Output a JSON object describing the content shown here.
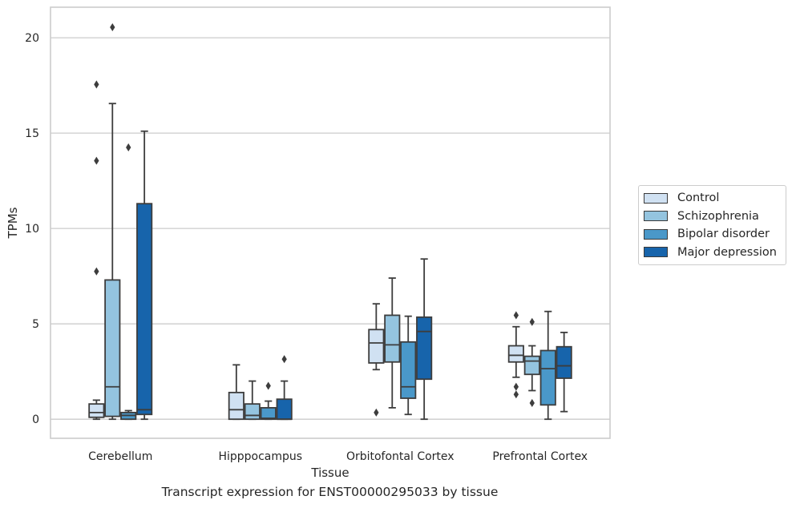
{
  "chart_data": {
    "type": "box",
    "title": "",
    "caption": "Transcript expression for ENST00000295033 by tissue",
    "xlabel": "Tissue",
    "ylabel": "TPMs",
    "ylim": [
      -1,
      21.6
    ],
    "yticks": [
      0,
      5,
      10,
      15,
      20
    ],
    "grid": "horizontal",
    "legend_position": "right",
    "categories": [
      "Cerebellum",
      "Hipppocampus",
      "Orbitofontal Cortex",
      "Prefrontal Cortex"
    ],
    "series": [
      {
        "name": "Control",
        "color": "#d0e1f2",
        "boxes": [
          {
            "whislo": 0.0,
            "q1": 0.1,
            "med": 0.35,
            "q3": 0.8,
            "whishi": 1.0,
            "fliers": [
              7.75,
              13.55,
              17.55
            ]
          },
          {
            "whislo": 0.0,
            "q1": 0.0,
            "med": 0.5,
            "q3": 1.4,
            "whishi": 2.85,
            "fliers": []
          },
          {
            "whislo": 2.6,
            "q1": 2.95,
            "med": 4.0,
            "q3": 4.7,
            "whishi": 6.05,
            "fliers": [
              0.35
            ]
          },
          {
            "whislo": 2.2,
            "q1": 3.0,
            "med": 3.35,
            "q3": 3.85,
            "whishi": 4.85,
            "fliers": [
              1.3,
              1.7,
              5.45
            ]
          }
        ]
      },
      {
        "name": "Schizophrenia",
        "color": "#94c4df",
        "boxes": [
          {
            "whislo": 0.0,
            "q1": 0.15,
            "med": 1.7,
            "q3": 7.3,
            "whishi": 16.55,
            "fliers": [
              20.55
            ]
          },
          {
            "whislo": 0.0,
            "q1": 0.0,
            "med": 0.2,
            "q3": 0.8,
            "whishi": 2.0,
            "fliers": []
          },
          {
            "whislo": 0.6,
            "q1": 3.0,
            "med": 3.9,
            "q3": 5.45,
            "whishi": 7.4,
            "fliers": []
          },
          {
            "whislo": 1.5,
            "q1": 2.35,
            "med": 3.05,
            "q3": 3.3,
            "whishi": 3.85,
            "fliers": [
              0.85,
              5.1
            ]
          }
        ]
      },
      {
        "name": "Bipolar disorder",
        "color": "#4a98c9",
        "boxes": [
          {
            "whislo": 0.0,
            "q1": 0.0,
            "med": 0.2,
            "q3": 0.35,
            "whishi": 0.45,
            "fliers": [
              14.25
            ]
          },
          {
            "whislo": 0.0,
            "q1": 0.0,
            "med": 0.05,
            "q3": 0.6,
            "whishi": 0.95,
            "fliers": [
              1.75
            ]
          },
          {
            "whislo": 0.25,
            "q1": 1.1,
            "med": 1.7,
            "q3": 4.05,
            "whishi": 5.4,
            "fliers": []
          },
          {
            "whislo": 0.0,
            "q1": 0.75,
            "med": 2.65,
            "q3": 3.6,
            "whishi": 5.65,
            "fliers": []
          }
        ]
      },
      {
        "name": "Major depression",
        "color": "#1764ab",
        "boxes": [
          {
            "whislo": 0.0,
            "q1": 0.25,
            "med": 0.5,
            "q3": 11.3,
            "whishi": 15.1,
            "fliers": []
          },
          {
            "whislo": 0.0,
            "q1": 0.0,
            "med": 0.0,
            "q3": 1.05,
            "whishi": 2.0,
            "fliers": [
              3.15
            ]
          },
          {
            "whislo": 0.0,
            "q1": 2.1,
            "med": 4.6,
            "q3": 5.35,
            "whishi": 8.4,
            "fliers": []
          },
          {
            "whislo": 0.4,
            "q1": 2.15,
            "med": 2.8,
            "q3": 3.8,
            "whishi": 4.55,
            "fliers": []
          }
        ]
      }
    ]
  }
}
